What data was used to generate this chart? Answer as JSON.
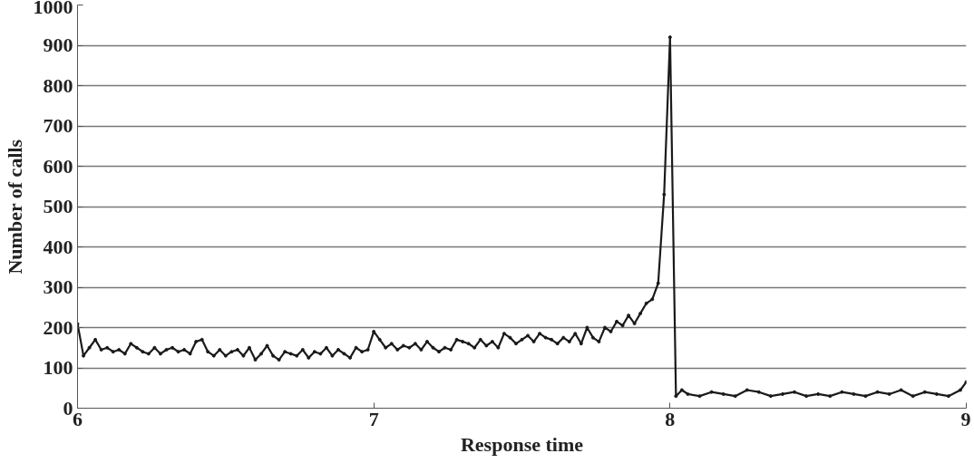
{
  "chart_data": {
    "type": "line",
    "xlabel": "Response time",
    "ylabel": "Number of calls",
    "xlim": [
      6,
      9
    ],
    "xticks": [
      6,
      7,
      8,
      9
    ],
    "ylim": [
      0,
      1000
    ],
    "yticks": [
      0,
      100,
      200,
      300,
      400,
      500,
      600,
      700,
      800,
      900,
      1000
    ],
    "grid": "y",
    "marker": "circle",
    "line_style": "solid",
    "x": [
      6,
      6.02,
      6.04,
      6.06,
      6.08,
      6.1,
      6.12,
      6.14,
      6.16,
      6.18,
      6.2,
      6.22,
      6.24,
      6.26,
      6.28,
      6.3,
      6.32,
      6.34,
      6.36,
      6.38,
      6.4,
      6.42,
      6.44,
      6.46,
      6.48,
      6.5,
      6.52,
      6.54,
      6.56,
      6.58,
      6.6,
      6.62,
      6.64,
      6.66,
      6.68,
      6.7,
      6.72,
      6.74,
      6.76,
      6.78,
      6.8,
      6.82,
      6.84,
      6.86,
      6.88,
      6.9,
      6.92,
      6.94,
      6.96,
      6.98,
      7,
      7.02,
      7.04,
      7.06,
      7.08,
      7.1,
      7.12,
      7.14,
      7.16,
      7.18,
      7.2,
      7.22,
      7.24,
      7.26,
      7.28,
      7.3,
      7.32,
      7.34,
      7.36,
      7.38,
      7.4,
      7.42,
      7.44,
      7.46,
      7.48,
      7.5,
      7.52,
      7.54,
      7.56,
      7.58,
      7.6,
      7.62,
      7.64,
      7.66,
      7.68,
      7.7,
      7.72,
      7.74,
      7.76,
      7.78,
      7.8,
      7.82,
      7.84,
      7.86,
      7.88,
      7.9,
      7.92,
      7.94,
      7.96,
      7.98,
      8,
      8.02,
      8.04,
      8.06,
      8.1,
      8.14,
      8.18,
      8.22,
      8.26,
      8.3,
      8.34,
      8.38,
      8.42,
      8.46,
      8.5,
      8.54,
      8.58,
      8.62,
      8.66,
      8.7,
      8.74,
      8.78,
      8.82,
      8.86,
      8.9,
      8.94,
      8.98,
      9
    ],
    "series": [
      {
        "color": "#1a1a1a",
        "values": [
          209,
          130,
          150,
          170,
          145,
          150,
          140,
          145,
          135,
          160,
          150,
          140,
          135,
          150,
          135,
          145,
          150,
          140,
          145,
          135,
          165,
          170,
          140,
          130,
          145,
          130,
          140,
          145,
          130,
          150,
          120,
          135,
          155,
          130,
          120,
          140,
          135,
          130,
          145,
          125,
          140,
          135,
          150,
          130,
          145,
          135,
          125,
          150,
          140,
          145,
          190,
          170,
          150,
          160,
          145,
          155,
          150,
          160,
          145,
          165,
          150,
          140,
          150,
          145,
          170,
          165,
          160,
          150,
          170,
          155,
          165,
          150,
          185,
          175,
          160,
          170,
          180,
          165,
          185,
          175,
          170,
          160,
          175,
          165,
          185,
          160,
          200,
          175,
          165,
          200,
          190,
          215,
          205,
          230,
          210,
          235,
          260,
          270,
          310,
          530,
          920,
          30,
          45,
          35,
          30,
          40,
          35,
          30,
          45,
          40,
          30,
          35,
          40,
          30,
          35,
          30,
          40,
          35,
          30,
          40,
          35,
          45,
          30,
          40,
          35,
          30,
          45,
          65
        ]
      }
    ]
  }
}
